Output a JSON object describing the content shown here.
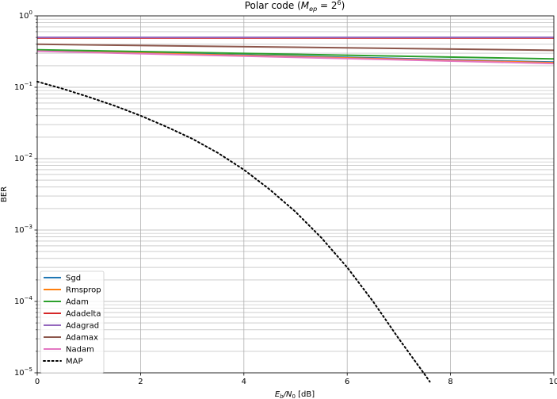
{
  "chart_data": {
    "type": "line",
    "title_prefix": "Polar code (",
    "title_math_base": "M",
    "title_math_sub": "ep",
    "title_math_eq": " = 2",
    "title_math_sup": "6",
    "title_suffix": ")",
    "xlabel_base_E": "E",
    "xlabel_sub_b": "b",
    "xlabel_slash_N": "/N",
    "xlabel_sub_0": "0",
    "xlabel_unit": " [dB]",
    "ylabel": "BER",
    "xlim": [
      0,
      10
    ],
    "ylim": [
      1e-05,
      1
    ],
    "yscale": "log",
    "grid": true,
    "legend_position": "lower-left",
    "x_ticks": [
      0,
      2,
      4,
      6,
      8,
      10
    ],
    "x_tick_labels": [
      "0",
      "2",
      "4",
      "6",
      "8",
      "10"
    ],
    "y_ticks": [
      {
        "base": "10",
        "exp": "0"
      },
      {
        "base": "10",
        "exp": "−1"
      },
      {
        "base": "10",
        "exp": "−2"
      },
      {
        "base": "10",
        "exp": "−3"
      },
      {
        "base": "10",
        "exp": "−4"
      },
      {
        "base": "10",
        "exp": "−5"
      }
    ],
    "series": [
      {
        "name": "Sgd",
        "color": "#1f77b4",
        "style": "solid",
        "x": [
          0,
          10
        ],
        "y": [
          0.33,
          0.225
        ]
      },
      {
        "name": "Rmsprop",
        "color": "#ff7f0e",
        "style": "solid",
        "x": [
          0,
          10
        ],
        "y": [
          0.325,
          0.22
        ]
      },
      {
        "name": "Adam",
        "color": "#2ca02c",
        "style": "solid",
        "x": [
          0,
          10
        ],
        "y": [
          0.335,
          0.25
        ]
      },
      {
        "name": "Adadelta",
        "color": "#d62728",
        "style": "solid",
        "x": [
          0,
          10
        ],
        "y": [
          0.49,
          0.49
        ]
      },
      {
        "name": "Adagrad",
        "color": "#9467bd",
        "style": "solid",
        "x": [
          0,
          10
        ],
        "y": [
          0.5,
          0.5
        ]
      },
      {
        "name": "Adamax",
        "color": "#8c564b",
        "style": "solid",
        "x": [
          0,
          10
        ],
        "y": [
          0.4,
          0.33
        ]
      },
      {
        "name": "Nadam",
        "color": "#e377c2",
        "style": "solid",
        "x": [
          0,
          10
        ],
        "y": [
          0.32,
          0.215
        ]
      },
      {
        "name": "MAP",
        "color": "#000000",
        "style": "dotted",
        "x": [
          0,
          0.5,
          1,
          1.5,
          2,
          2.5,
          3,
          3.5,
          4,
          4.5,
          5,
          5.5,
          6,
          6.5,
          7,
          7.5,
          7.6
        ],
        "y": [
          0.12,
          0.095,
          0.073,
          0.055,
          0.04,
          0.028,
          0.019,
          0.012,
          0.007,
          0.0037,
          0.0018,
          0.00078,
          0.0003,
          0.0001,
          3e-05,
          9.5e-06,
          7.5e-06
        ]
      }
    ]
  }
}
